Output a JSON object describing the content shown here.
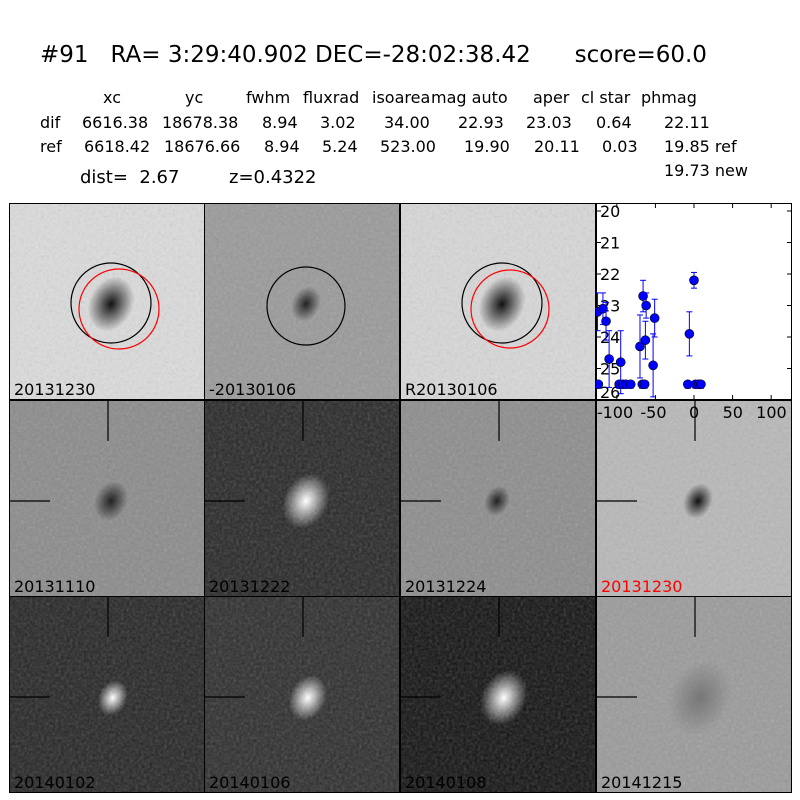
{
  "header": {
    "title": "#91   RA= 3:29:40.902 DEC=-28:02:38.42      score=60.0"
  },
  "table": {
    "columns": [
      "xc",
      "yc",
      "fwhm",
      "fluxrad",
      "isoarea",
      "mag auto",
      "aper",
      "cl star",
      "phmag"
    ],
    "rows": [
      {
        "label": "dif",
        "values": [
          "6616.38",
          "18678.38",
          "8.94",
          "3.02",
          "34.00",
          "22.93",
          "23.03",
          "0.64",
          "22.11"
        ]
      },
      {
        "label": "ref",
        "values": [
          "6618.42",
          "18676.66",
          "8.94",
          "5.24",
          "523.00",
          "19.90",
          "20.11",
          "0.03",
          "19.85 ref"
        ]
      }
    ],
    "extra": "19.73 new",
    "dist": "dist=  2.67",
    "z": "z=0.4322"
  },
  "panels": [
    {
      "label": "20131230",
      "bg": "#dcdcdc",
      "blob": "#111",
      "circles": [
        "black",
        "red"
      ]
    },
    {
      "label": "-20130106",
      "bg": "#999999",
      "blob": "#222",
      "circles": [
        "black"
      ]
    },
    {
      "label": "R20130106",
      "bg": "#d8d8d8",
      "blob": "#111",
      "circles": [
        "black",
        "red"
      ]
    },
    {
      "label": "20131110",
      "bg": "#8a8a8a",
      "blob": "#222",
      "cross": true
    },
    {
      "label": "20131222",
      "bg": "#262626",
      "blob": "#ffffff",
      "cross": true
    },
    {
      "label": "20131224",
      "bg": "#8c8c8c",
      "blob": "#222",
      "cross": true
    },
    {
      "label": "20131230",
      "bg": "#b8b8b8",
      "blob": "#111",
      "cross": true,
      "label_color": "#ff0000"
    },
    {
      "label": "20140102",
      "bg": "#242424",
      "blob": "#ffffff",
      "cross": true
    },
    {
      "label": "20140106",
      "bg": "#2c2c2c",
      "blob": "#ffffff",
      "cross": true
    },
    {
      "label": "20140108",
      "bg": "#111111",
      "blob": "#ffffff",
      "cross": true
    },
    {
      "label": "20141215",
      "bg": "#9a9a9a",
      "blob": "#777",
      "cross": true
    }
  ],
  "chart_data": {
    "type": "scatter",
    "error_bars": true,
    "marker_color": "#0000ff",
    "xlim": [
      -127,
      127
    ],
    "ylim": [
      26,
      20
    ],
    "y_inverted": true,
    "xticks": [
      -100,
      -50,
      0,
      50,
      100
    ],
    "yticks": [
      20,
      21,
      22,
      23,
      24,
      25,
      26
    ],
    "points": [
      {
        "x": -125,
        "y": 23.2,
        "err": 0.6
      },
      {
        "x": -124,
        "y": 25.5,
        "err": 0
      },
      {
        "x": -118,
        "y": 23.1,
        "err": 0.5
      },
      {
        "x": -114,
        "y": 23.5,
        "err": 0.6
      },
      {
        "x": -110,
        "y": 24.7,
        "err": 0.9
      },
      {
        "x": -97,
        "y": 25.5,
        "err": 0
      },
      {
        "x": -95,
        "y": 24.8,
        "err": 1.0
      },
      {
        "x": -92,
        "y": 25.5,
        "err": 0
      },
      {
        "x": -88,
        "y": 25.5,
        "err": 0
      },
      {
        "x": -82,
        "y": 25.5,
        "err": 0
      },
      {
        "x": -70,
        "y": 24.3,
        "err": 1.0
      },
      {
        "x": -66,
        "y": 22.7,
        "err": 0.5
      },
      {
        "x": -67,
        "y": 25.5,
        "err": 0
      },
      {
        "x": -64,
        "y": 25.5,
        "err": 0
      },
      {
        "x": -63,
        "y": 24.1,
        "err": 0.6
      },
      {
        "x": -62,
        "y": 23.0,
        "err": 0.4
      },
      {
        "x": -53,
        "y": 24.9,
        "err": 1.0
      },
      {
        "x": -51,
        "y": 23.4,
        "err": 0.6
      },
      {
        "x": -6,
        "y": 23.9,
        "err": 0.7
      },
      {
        "x": -8,
        "y": 25.5,
        "err": 0
      },
      {
        "x": 0,
        "y": 22.2,
        "err": 0.25
      },
      {
        "x": 2,
        "y": 25.5,
        "err": 0
      },
      {
        "x": 6,
        "y": 25.5,
        "err": 0
      },
      {
        "x": 9,
        "y": 25.5,
        "err": 0
      }
    ]
  }
}
